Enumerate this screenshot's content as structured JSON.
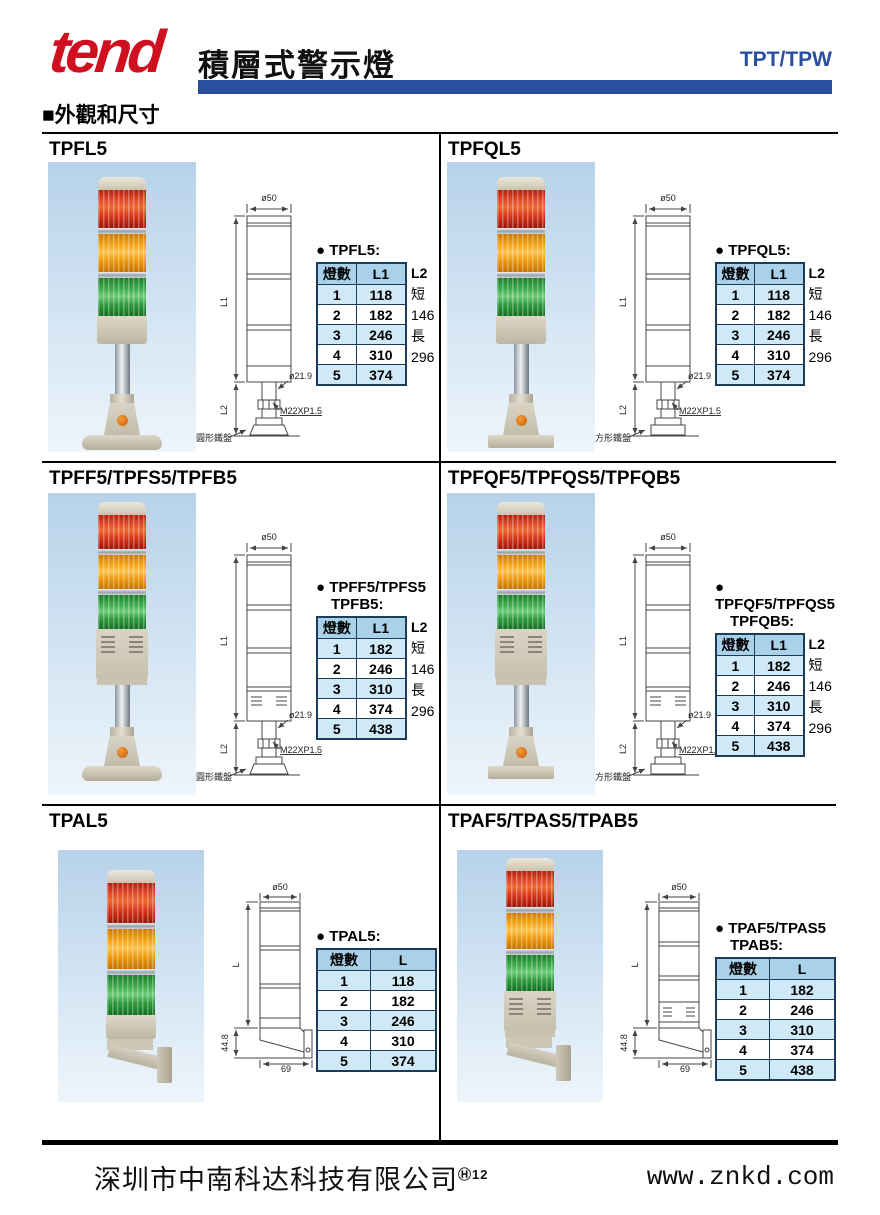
{
  "header": {
    "logo": "tend",
    "title": "積層式警示燈",
    "series": "TPT/TPW"
  },
  "section": {
    "heading": "■外觀和尺寸"
  },
  "drawing_labels": {
    "dia_top": "ø50",
    "l1": "L1",
    "l2": "L2",
    "l": "L",
    "dia_pole": "ø21.9",
    "thread": "M22XP1.5",
    "plate_round": "圓形鐵盤",
    "plate_square": "方形鐵盤",
    "h": "44.8",
    "w": "69"
  },
  "panels": [
    {
      "title": "TPFL5",
      "table_title": "● TPFL5:",
      "col1": "燈數",
      "col2": "L1",
      "l2_label": "L2",
      "l2_short": "短146",
      "l2_long": "長296",
      "rows": [
        [
          "1",
          "118"
        ],
        [
          "2",
          "182"
        ],
        [
          "3",
          "246"
        ],
        [
          "4",
          "310"
        ],
        [
          "5",
          "374"
        ]
      ]
    },
    {
      "title": "TPFQL5",
      "table_title": "● TPFQL5:",
      "col1": "燈數",
      "col2": "L1",
      "l2_label": "L2",
      "l2_short": "短146",
      "l2_long": "長296",
      "rows": [
        [
          "1",
          "118"
        ],
        [
          "2",
          "182"
        ],
        [
          "3",
          "246"
        ],
        [
          "4",
          "310"
        ],
        [
          "5",
          "374"
        ]
      ]
    },
    {
      "title": "TPFF5/TPFS5/TPFB5",
      "table_title": "● TPFF5/TPFS5",
      "table_title2": "TPFB5:",
      "col1": "燈數",
      "col2": "L1",
      "l2_label": "L2",
      "l2_short": "短146",
      "l2_long": "長296",
      "rows": [
        [
          "1",
          "182"
        ],
        [
          "2",
          "246"
        ],
        [
          "3",
          "310"
        ],
        [
          "4",
          "374"
        ],
        [
          "5",
          "438"
        ]
      ]
    },
    {
      "title": "TPFQF5/TPFQS5/TPFQB5",
      "table_title": "● TPFQF5/TPFQS5",
      "table_title2": "TPFQB5:",
      "col1": "燈數",
      "col2": "L1",
      "l2_label": "L2",
      "l2_short": "短146",
      "l2_long": "長296",
      "rows": [
        [
          "1",
          "182"
        ],
        [
          "2",
          "246"
        ],
        [
          "3",
          "310"
        ],
        [
          "4",
          "374"
        ],
        [
          "5",
          "438"
        ]
      ]
    },
    {
      "title": "TPAL5",
      "table_title": "● TPAL5:",
      "col1": "燈數",
      "col2": "L",
      "rows": [
        [
          "1",
          "118"
        ],
        [
          "2",
          "182"
        ],
        [
          "3",
          "246"
        ],
        [
          "4",
          "310"
        ],
        [
          "5",
          "374"
        ]
      ]
    },
    {
      "title": "TPAF5/TPAS5/TPAB5",
      "table_title": "● TPAF5/TPAS5",
      "table_title2": "TPAB5:",
      "col1": "燈數",
      "col2": "L",
      "rows": [
        [
          "1",
          "182"
        ],
        [
          "2",
          "246"
        ],
        [
          "3",
          "310"
        ],
        [
          "4",
          "374"
        ],
        [
          "5",
          "438"
        ]
      ]
    }
  ],
  "footer": {
    "company": "深圳市中南科达科技有限公司",
    "mark": "Ⓗ",
    "page": "12",
    "website": "www.znkd.com"
  }
}
